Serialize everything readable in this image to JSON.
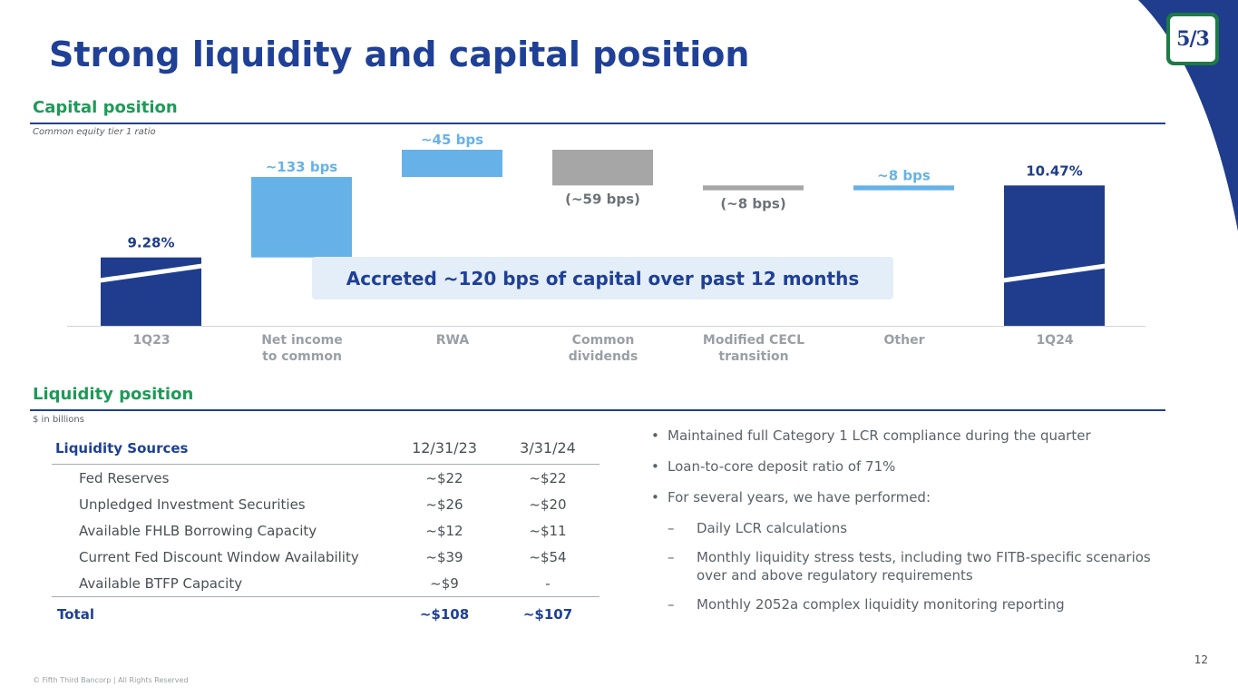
{
  "title": "Strong liquidity and capital position",
  "brand": {
    "logo_text": "5/3",
    "logo_name": "fifth-third-logo",
    "primary": "#1f4096",
    "green": "#1e9a57",
    "light_blue": "#66b2e8",
    "gray": "#a6a6a6"
  },
  "capital": {
    "heading": "Capital position",
    "subtitle": "Common equity tier 1 ratio",
    "callout": "Accreted ~120 bps of capital over past 12 months",
    "categories_display": [
      "1Q23",
      "Net income\nto common",
      "RWA",
      "Common\ndividends",
      "Modified CECL\ntransition",
      "Other",
      "1Q24"
    ]
  },
  "chart_data": {
    "type": "bar",
    "subtype": "waterfall",
    "title": "Capital position",
    "ylabel": "Common equity tier 1 ratio",
    "unit": "%",
    "categories": [
      "1Q23",
      "Net income to common",
      "RWA",
      "Common dividends",
      "Modified CECL transition",
      "Other",
      "1Q24"
    ],
    "values": [
      9.28,
      1.33,
      0.45,
      -0.59,
      -0.08,
      0.08,
      10.47
    ],
    "kinds": [
      "total",
      "increase",
      "increase",
      "decrease",
      "decrease",
      "increase",
      "total"
    ],
    "data_labels": [
      "9.28%",
      "~133 bps",
      "~45 bps",
      "(~59 bps)",
      "(~8 bps)",
      "~8 bps",
      "10.47%"
    ],
    "ylim": [
      8.15,
      11.45
    ],
    "axis_break": true,
    "colors": {
      "total": "#1f3d8c",
      "increase": "#66b2e8",
      "decrease": "#a6a6a6"
    }
  },
  "liquidity": {
    "heading": "Liquidity position",
    "subtitle": "$ in billions",
    "table": {
      "headers": [
        "Liquidity Sources",
        "12/31/23",
        "3/31/24"
      ],
      "rows": [
        [
          "Fed Reserves",
          "~$22",
          "~$22"
        ],
        [
          "Unpledged Investment Securities",
          "~$26",
          "~$20"
        ],
        [
          "Available FHLB Borrowing Capacity",
          "~$12",
          "~$11"
        ],
        [
          "Current Fed Discount Window Availability",
          "~$39",
          "~$54"
        ],
        [
          "Available BTFP Capacity",
          "~$9",
          "-"
        ]
      ],
      "total": [
        "Total",
        "~$108",
        "~$107"
      ]
    },
    "bullets": [
      {
        "level": 1,
        "marker": "•",
        "text": "Maintained full Category 1 LCR compliance during the quarter"
      },
      {
        "level": 1,
        "marker": "•",
        "text": "Loan-to-core deposit ratio of 71%"
      },
      {
        "level": 1,
        "marker": "•",
        "text": "For several years, we have performed:"
      },
      {
        "level": 2,
        "marker": "–",
        "text": "Daily LCR calculations"
      },
      {
        "level": 2,
        "marker": "–",
        "text": "Monthly liquidity stress tests, including two FITB-specific scenarios over and above regulatory requirements"
      },
      {
        "level": 2,
        "marker": "–",
        "text": "Monthly 2052a complex liquidity monitoring reporting"
      }
    ]
  },
  "footer": {
    "copyright": "© Fifth Third Bancorp | All Rights Reserved",
    "page_number": "12"
  }
}
